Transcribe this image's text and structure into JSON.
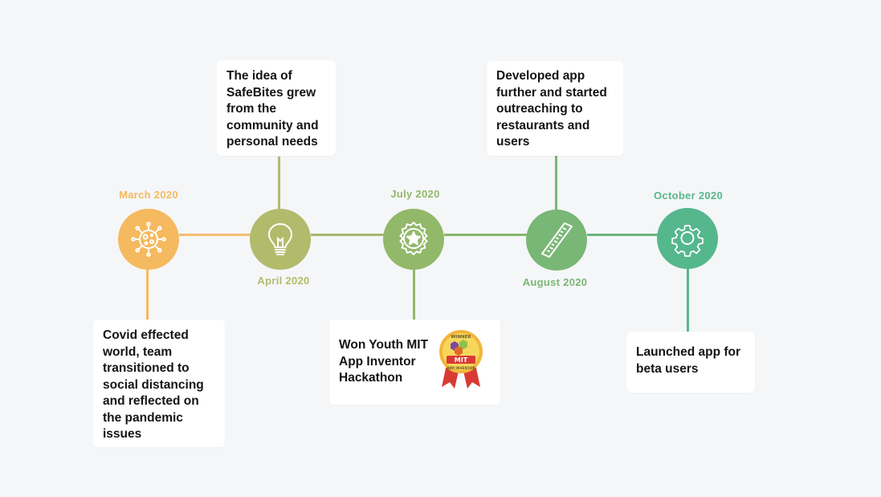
{
  "colors": {
    "march": "#f5b95f",
    "april": "#b2bb6b",
    "july": "#92b86a",
    "august": "#79b776",
    "october": "#55b78c",
    "background": "#f5f6f8",
    "card": "#ffffff"
  },
  "milestones": [
    {
      "date": "March 2020",
      "icon": "virus-icon",
      "text": "Covid effected world, team transitioned to social distancing and reflected on the pandemic issues"
    },
    {
      "date": "April 2020",
      "icon": "lightbulb-icon",
      "text": "The idea of SafeBites grew from the community and personal needs"
    },
    {
      "date": "July 2020",
      "icon": "star-badge-icon",
      "text": "Won Youth MIT App Inventor Hackathon",
      "badge": {
        "top": "WINNER",
        "main": "MIT",
        "bottom": "APP INVENTOR"
      }
    },
    {
      "date": "August 2020",
      "icon": "ruler-icon",
      "text": "Developed app further and started outreaching to restaurants and users"
    },
    {
      "date": "October 2020",
      "icon": "gear-icon",
      "text": "Launched app for beta users"
    }
  ]
}
